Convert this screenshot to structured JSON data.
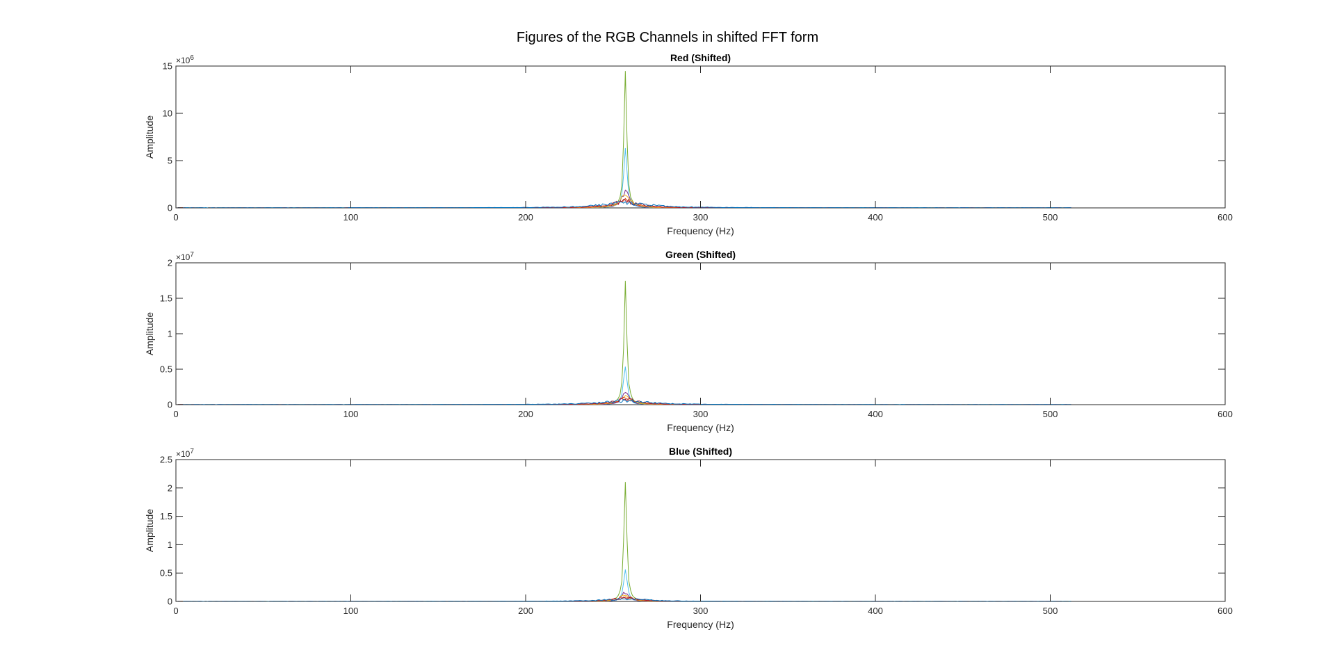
{
  "figure": {
    "title": "Figures of the RGB Channels in shifted FFT form"
  },
  "chart_data": [
    {
      "type": "line",
      "title": "Red (Shifted)",
      "xlabel": "Frequency (Hz)",
      "ylabel": "Amplitude",
      "xlim": [
        0,
        600
      ],
      "xticks": [
        0,
        100,
        200,
        300,
        400,
        500,
        600
      ],
      "xtick_labels": [
        "0",
        "100",
        "200",
        "300",
        "400",
        "500",
        "600"
      ],
      "ylim": [
        0,
        15000000
      ],
      "yticks": [
        0,
        5000000,
        10000000,
        15000000
      ],
      "ytick_labels": [
        "0",
        "5",
        "10",
        "15"
      ],
      "exponent_label": "×10",
      "exponent_power": "6",
      "grid": false,
      "peak_bin": 257,
      "n_bins": 512,
      "series": [
        {
          "color": "#77ac30",
          "peak": 15000000,
          "spread": 0.9,
          "ripple": 0.1,
          "floor": 30000
        },
        {
          "color": "#4dbeee",
          "peak": 6500000,
          "spread": 1.1,
          "ripple": 0.15,
          "floor": 30000
        },
        {
          "color": "#7e2f8e",
          "peak": 1900000,
          "spread": 2.4,
          "ripple": 0.25,
          "floor": 25000
        },
        {
          "color": "#edb120",
          "peak": 1300000,
          "spread": 3.5,
          "ripple": 0.3,
          "floor": 25000
        },
        {
          "color": "#d95319",
          "peak": 900000,
          "spread": 6.0,
          "ripple": 0.35,
          "floor": 25000
        },
        {
          "color": "#a2142f",
          "peak": 700000,
          "spread": 9.0,
          "ripple": 0.4,
          "floor": 20000
        },
        {
          "color": "#0072bd",
          "peak": 500000,
          "spread": 16.0,
          "ripple": 0.45,
          "floor": 20000
        }
      ]
    },
    {
      "type": "line",
      "title": "Green (Shifted)",
      "xlabel": "Frequency (Hz)",
      "ylabel": "Amplitude",
      "xlim": [
        0,
        600
      ],
      "xticks": [
        0,
        100,
        200,
        300,
        400,
        500,
        600
      ],
      "xtick_labels": [
        "0",
        "100",
        "200",
        "300",
        "400",
        "500",
        "600"
      ],
      "ylim": [
        0,
        20000000
      ],
      "yticks": [
        0,
        5000000,
        10000000,
        15000000,
        20000000
      ],
      "ytick_labels": [
        "0",
        "0.5",
        "1",
        "1.5",
        "2"
      ],
      "exponent_label": "×10",
      "exponent_power": "7",
      "grid": false,
      "peak_bin": 257,
      "n_bins": 512,
      "series": [
        {
          "color": "#77ac30",
          "peak": 18500000,
          "spread": 0.9,
          "ripple": 0.1,
          "floor": 30000
        },
        {
          "color": "#4dbeee",
          "peak": 5700000,
          "spread": 1.1,
          "ripple": 0.15,
          "floor": 30000
        },
        {
          "color": "#7e2f8e",
          "peak": 1800000,
          "spread": 2.4,
          "ripple": 0.25,
          "floor": 25000
        },
        {
          "color": "#edb120",
          "peak": 1300000,
          "spread": 3.5,
          "ripple": 0.3,
          "floor": 25000
        },
        {
          "color": "#d95319",
          "peak": 900000,
          "spread": 6.0,
          "ripple": 0.35,
          "floor": 25000
        },
        {
          "color": "#a2142f",
          "peak": 700000,
          "spread": 9.0,
          "ripple": 0.4,
          "floor": 20000
        },
        {
          "color": "#0072bd",
          "peak": 500000,
          "spread": 16.0,
          "ripple": 0.45,
          "floor": 20000
        }
      ]
    },
    {
      "type": "line",
      "title": "Blue (Shifted)",
      "xlabel": "Frequency (Hz)",
      "ylabel": "Amplitude",
      "xlim": [
        0,
        600
      ],
      "xticks": [
        0,
        100,
        200,
        300,
        400,
        500,
        600
      ],
      "xtick_labels": [
        "0",
        "100",
        "200",
        "300",
        "400",
        "500",
        "600"
      ],
      "ylim": [
        0,
        25000000
      ],
      "yticks": [
        0,
        5000000,
        10000000,
        15000000,
        20000000,
        25000000
      ],
      "ytick_labels": [
        "0",
        "0.5",
        "1",
        "1.5",
        "2",
        "2.5"
      ],
      "exponent_label": "×10",
      "exponent_power": "7",
      "grid": false,
      "peak_bin": 257,
      "n_bins": 512,
      "series": [
        {
          "color": "#77ac30",
          "peak": 22800000,
          "spread": 0.9,
          "ripple": 0.1,
          "floor": 30000
        },
        {
          "color": "#4dbeee",
          "peak": 6200000,
          "spread": 1.1,
          "ripple": 0.15,
          "floor": 30000
        },
        {
          "color": "#7e2f8e",
          "peak": 1500000,
          "spread": 2.4,
          "ripple": 0.25,
          "floor": 25000
        },
        {
          "color": "#edb120",
          "peak": 1100000,
          "spread": 3.5,
          "ripple": 0.3,
          "floor": 25000
        },
        {
          "color": "#d95319",
          "peak": 800000,
          "spread": 6.0,
          "ripple": 0.35,
          "floor": 25000
        },
        {
          "color": "#a2142f",
          "peak": 600000,
          "spread": 9.0,
          "ripple": 0.4,
          "floor": 20000
        },
        {
          "color": "#0072bd",
          "peak": 400000,
          "spread": 16.0,
          "ripple": 0.45,
          "floor": 20000
        }
      ]
    }
  ]
}
